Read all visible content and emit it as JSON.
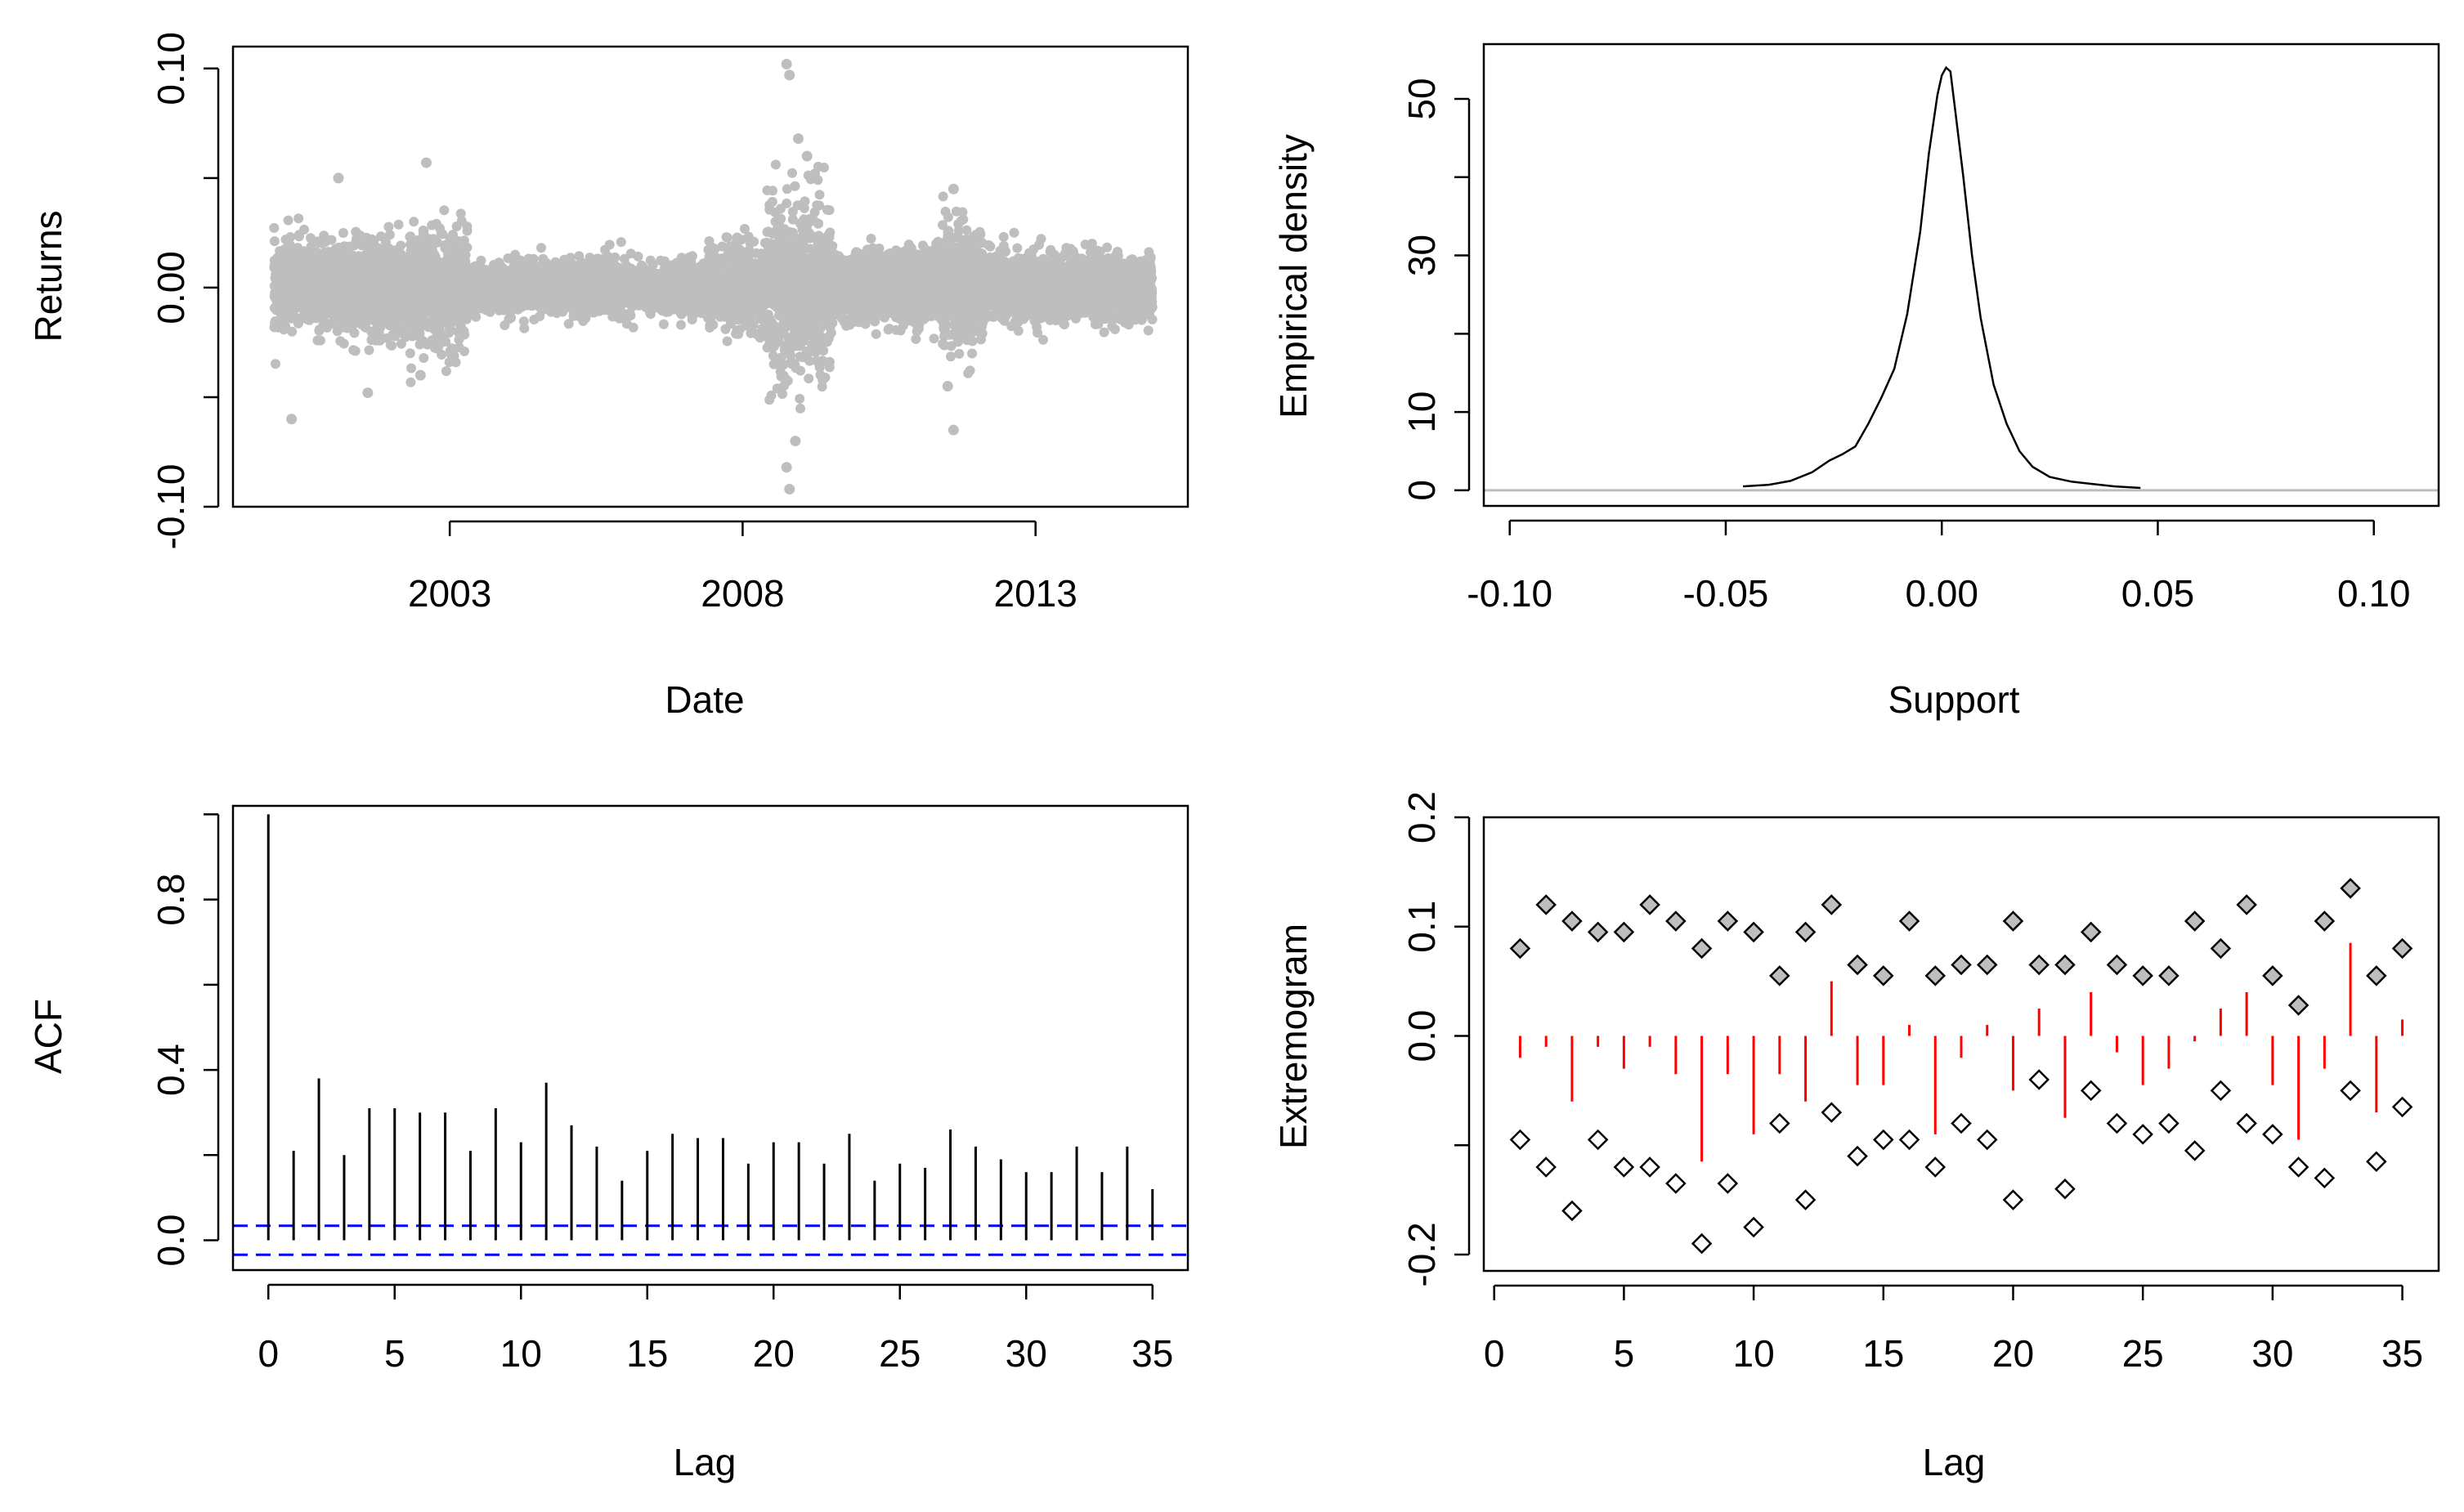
{
  "chart_data": [
    {
      "type": "scatter",
      "panel": "returns",
      "title": "",
      "xlabel": "Date",
      "ylabel": "Returns",
      "x_ticks": [
        2003,
        2008,
        2013
      ],
      "x_tick_labels": [
        "2003",
        "2008",
        "2013"
      ],
      "y_ticks": [
        -0.1,
        -0.05,
        0.0,
        0.05,
        0.1
      ],
      "y_tick_labels": [
        "-0.10",
        "",
        "0.00",
        "",
        "0.10"
      ],
      "xlim": [
        1999.3,
        2015.6
      ],
      "ylim": [
        -0.1,
        0.11
      ],
      "start_year": 2000.0,
      "end_year": 2015.0,
      "point_color": "#bebebe",
      "segments": [
        {
          "from": 2000.0,
          "to": 2002.3,
          "sd": 0.01
        },
        {
          "from": 2002.3,
          "to": 2003.3,
          "sd": 0.013
        },
        {
          "from": 2003.3,
          "to": 2007.4,
          "sd": 0.0055
        },
        {
          "from": 2007.4,
          "to": 2008.4,
          "sd": 0.009
        },
        {
          "from": 2008.4,
          "to": 2009.5,
          "sd": 0.02
        },
        {
          "from": 2009.5,
          "to": 2011.4,
          "sd": 0.008
        },
        {
          "from": 2011.4,
          "to": 2012.1,
          "sd": 0.014
        },
        {
          "from": 2012.1,
          "to": 2015.0,
          "sd": 0.007
        }
      ],
      "extremes": [
        {
          "x": 2008.75,
          "y": 0.102
        },
        {
          "x": 2008.8,
          "y": 0.097
        },
        {
          "x": 2008.8,
          "y": -0.092
        },
        {
          "x": 2008.75,
          "y": -0.082
        },
        {
          "x": 2008.9,
          "y": -0.07
        },
        {
          "x": 2009.1,
          "y": 0.06
        },
        {
          "x": 2008.95,
          "y": 0.068
        },
        {
          "x": 2000.3,
          "y": -0.06
        },
        {
          "x": 2001.1,
          "y": 0.05
        },
        {
          "x": 2002.6,
          "y": 0.057
        },
        {
          "x": 2002.5,
          "y": -0.04
        },
        {
          "x": 2011.6,
          "y": -0.065
        },
        {
          "x": 2011.6,
          "y": 0.045
        },
        {
          "x": 2011.5,
          "y": -0.045
        },
        {
          "x": 2001.6,
          "y": -0.048
        }
      ]
    },
    {
      "type": "line",
      "panel": "density",
      "title": "",
      "xlabel": "Support",
      "ylabel": "Empirical density",
      "x_ticks": [
        -0.1,
        -0.05,
        0.0,
        0.05,
        0.1
      ],
      "x_tick_labels": [
        "-0.10",
        "-0.05",
        "0.00",
        "0.05",
        "0.10"
      ],
      "y_ticks": [
        0,
        10,
        20,
        30,
        40,
        50
      ],
      "y_tick_labels": [
        "0",
        "10",
        "",
        "30",
        "",
        "50"
      ],
      "xlim": [
        -0.106,
        0.115
      ],
      "ylim": [
        -2,
        57
      ],
      "x": [
        -0.046,
        -0.04,
        -0.035,
        -0.03,
        -0.026,
        -0.023,
        -0.02,
        -0.017,
        -0.014,
        -0.011,
        -0.008,
        -0.005,
        -0.003,
        -0.001,
        0.0,
        0.001,
        0.002,
        0.003,
        0.005,
        0.007,
        0.009,
        0.012,
        0.015,
        0.018,
        0.021,
        0.025,
        0.03,
        0.035,
        0.04,
        0.046
      ],
      "y": [
        0.5,
        0.7,
        1.2,
        2.3,
        3.8,
        4.6,
        5.6,
        8.5,
        11.8,
        15.5,
        22.5,
        33.0,
        43.0,
        50.5,
        53.0,
        54.0,
        53.5,
        49.0,
        40.0,
        30.0,
        22.0,
        13.5,
        8.5,
        5.0,
        3.0,
        1.7,
        1.1,
        0.8,
        0.5,
        0.3
      ],
      "baseline": 0,
      "line_color": "#000000",
      "baseline_color": "#bebebe"
    },
    {
      "type": "bar",
      "panel": "acf",
      "title": "",
      "xlabel": "Lag",
      "ylabel": "ACF",
      "x_ticks": [
        0,
        5,
        10,
        15,
        20,
        25,
        30,
        35
      ],
      "x_tick_labels": [
        "0",
        "5",
        "10",
        "15",
        "20",
        "25",
        "30",
        "35"
      ],
      "y_ticks": [
        0.0,
        0.2,
        0.4,
        0.6,
        0.8,
        1.0
      ],
      "y_tick_labels": [
        "0.0",
        "",
        "0.4",
        "",
        "0.8",
        ""
      ],
      "xlim": [
        -1.4,
        36.4
      ],
      "ylim": [
        -0.07,
        1.02
      ],
      "lags": [
        0,
        1,
        2,
        3,
        4,
        5,
        6,
        7,
        8,
        9,
        10,
        11,
        12,
        13,
        14,
        15,
        16,
        17,
        18,
        19,
        20,
        21,
        22,
        23,
        24,
        25,
        26,
        27,
        28,
        29,
        30,
        31,
        32,
        33,
        34,
        35
      ],
      "values": [
        1.0,
        0.21,
        0.38,
        0.2,
        0.31,
        0.31,
        0.3,
        0.3,
        0.21,
        0.31,
        0.23,
        0.37,
        0.27,
        0.22,
        0.14,
        0.21,
        0.25,
        0.24,
        0.24,
        0.18,
        0.23,
        0.23,
        0.18,
        0.25,
        0.14,
        0.18,
        0.17,
        0.26,
        0.22,
        0.19,
        0.16,
        0.16,
        0.22,
        0.16,
        0.22,
        0.12
      ],
      "ci": [
        0.034,
        -0.034
      ],
      "ci_color": "#0000ff"
    },
    {
      "type": "scatter",
      "panel": "extremogram",
      "title": "",
      "xlabel": "Lag",
      "ylabel": "Extremogram",
      "x_ticks": [
        0,
        5,
        10,
        15,
        20,
        25,
        30,
        35
      ],
      "x_tick_labels": [
        "0",
        "5",
        "10",
        "15",
        "20",
        "25",
        "30",
        "35"
      ],
      "y_ticks": [
        -0.2,
        -0.1,
        0.0,
        0.1,
        0.2
      ],
      "y_tick_labels": [
        "-0.2",
        "",
        "0.0",
        "0.1",
        "0.2"
      ],
      "xlim": [
        -0.4,
        36.4
      ],
      "ylim": [
        -0.215,
        0.2
      ],
      "lags": [
        1,
        2,
        3,
        4,
        5,
        6,
        7,
        8,
        9,
        10,
        11,
        12,
        13,
        14,
        15,
        16,
        17,
        18,
        19,
        20,
        21,
        22,
        23,
        24,
        25,
        26,
        27,
        28,
        29,
        30,
        31,
        32,
        33,
        34,
        35
      ],
      "upper": [
        0.08,
        0.12,
        0.105,
        0.095,
        0.095,
        0.12,
        0.105,
        0.08,
        0.105,
        0.095,
        0.055,
        0.095,
        0.12,
        0.065,
        0.055,
        0.105,
        0.055,
        0.065,
        0.065,
        0.105,
        0.065,
        0.065,
        0.095,
        0.065,
        0.055,
        0.055,
        0.105,
        0.08,
        0.12,
        0.055,
        0.028,
        0.105,
        0.135,
        0.055,
        0.08
      ],
      "lower": [
        -0.095,
        -0.12,
        -0.16,
        -0.095,
        -0.12,
        -0.12,
        -0.135,
        -0.19,
        -0.135,
        -0.175,
        -0.08,
        -0.15,
        -0.07,
        -0.11,
        -0.095,
        -0.095,
        -0.12,
        -0.08,
        -0.095,
        -0.15,
        -0.04,
        -0.14,
        -0.05,
        -0.08,
        -0.09,
        -0.08,
        -0.105,
        -0.05,
        -0.08,
        -0.09,
        -0.12,
        -0.13,
        -0.05,
        -0.115,
        -0.065
      ],
      "bars": [
        -0.02,
        -0.01,
        -0.06,
        -0.01,
        -0.03,
        -0.01,
        -0.035,
        -0.115,
        -0.035,
        -0.09,
        -0.035,
        -0.06,
        0.05,
        -0.045,
        -0.045,
        0.01,
        -0.09,
        -0.02,
        0.01,
        -0.05,
        0.025,
        -0.075,
        0.04,
        -0.015,
        -0.045,
        -0.03,
        -0.005,
        0.025,
        0.04,
        -0.045,
        -0.095,
        -0.03,
        0.085,
        -0.07,
        0.015
      ],
      "bar_color": "#ff0000",
      "upper_fill": "#bebebe"
    }
  ]
}
